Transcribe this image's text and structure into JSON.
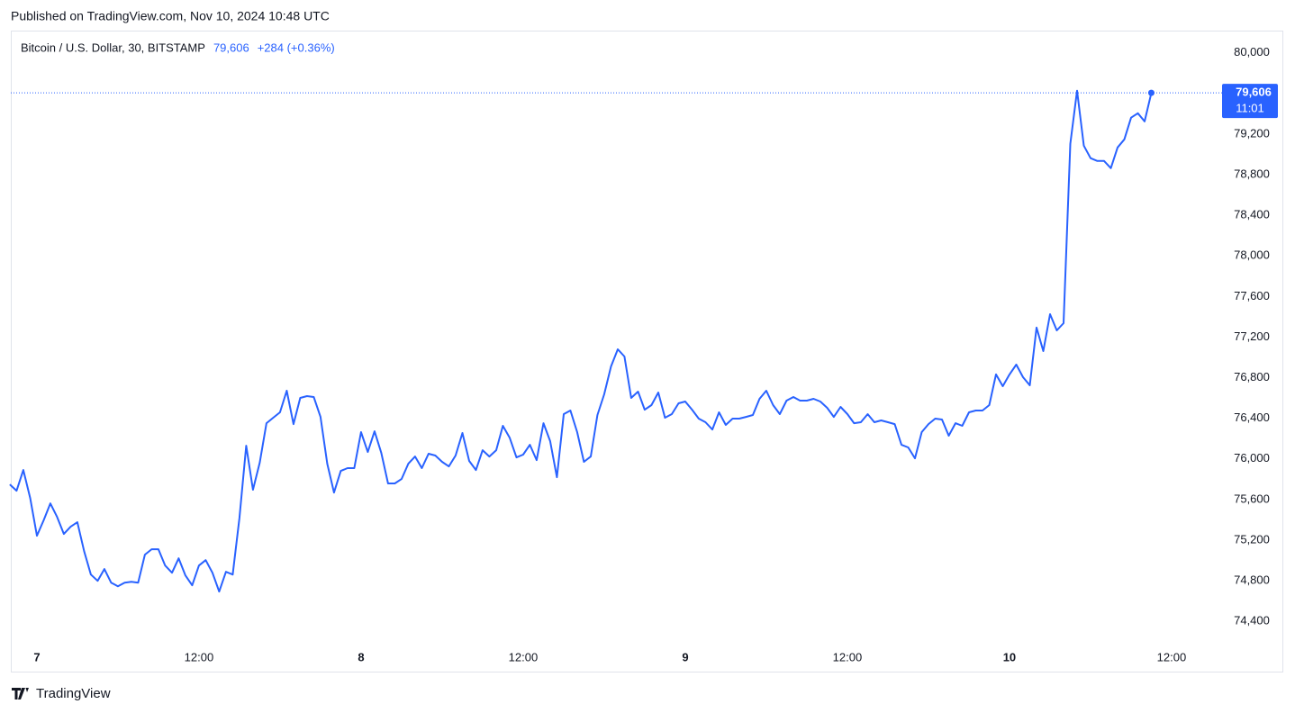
{
  "header": {
    "published": "Published on TradingView.com, Nov 10, 2024 10:48 UTC"
  },
  "footer": {
    "brand": "TradingView"
  },
  "chart_data": {
    "type": "line",
    "title": "Bitcoin / U.S. Dollar, 30, BITSTAMP",
    "legend_price": "79,606",
    "legend_change": "+284 (+0.36%)",
    "color": "#2962ff",
    "last_price": {
      "value": 79606,
      "label": "79,606"
    },
    "countdown": "11:01",
    "xlim": [
      -1.93,
      87.27
    ],
    "xticks": [
      {
        "value": 0,
        "label": "7"
      },
      {
        "value": 12,
        "label": "12:00"
      },
      {
        "value": 24,
        "label": "8"
      },
      {
        "value": 36,
        "label": "12:00"
      },
      {
        "value": 48,
        "label": "9"
      },
      {
        "value": 60,
        "label": "12:00"
      },
      {
        "value": 72,
        "label": "10"
      },
      {
        "value": 84,
        "label": "12:00"
      }
    ],
    "ylim": [
      74180,
      80210
    ],
    "yticks": [
      {
        "value": 74400,
        "label": "74,400"
      },
      {
        "value": 74800,
        "label": "74,800"
      },
      {
        "value": 75200,
        "label": "75,200"
      },
      {
        "value": 75600,
        "label": "75,600"
      },
      {
        "value": 76000,
        "label": "76,000"
      },
      {
        "value": 76400,
        "label": "76,400"
      },
      {
        "value": 76800,
        "label": "76,800"
      },
      {
        "value": 77200,
        "label": "77,200"
      },
      {
        "value": 77600,
        "label": "77,600"
      },
      {
        "value": 78000,
        "label": "78,000"
      },
      {
        "value": 78400,
        "label": "78,400"
      },
      {
        "value": 78800,
        "label": "78,800"
      },
      {
        "value": 79200,
        "label": "79,200"
      },
      {
        "value": 80000,
        "label": "80,000"
      }
    ],
    "x": [
      -2,
      -1.5,
      -1,
      -0.5,
      0,
      0.5,
      1,
      1.5,
      2,
      2.5,
      3,
      3.5,
      4,
      4.5,
      5,
      5.5,
      6,
      6.5,
      7,
      7.5,
      8,
      8.5,
      9,
      9.5,
      10,
      10.5,
      11,
      11.5,
      12,
      12.5,
      13,
      13.5,
      14,
      14.5,
      15,
      15.5,
      16,
      16.5,
      17,
      17.5,
      18,
      18.5,
      19,
      19.5,
      20,
      20.5,
      21,
      21.5,
      22,
      22.5,
      23,
      23.5,
      24,
      24.5,
      25,
      25.5,
      26,
      26.5,
      27,
      27.5,
      28,
      28.5,
      29,
      29.5,
      30,
      30.5,
      31,
      31.5,
      32,
      32.5,
      33,
      33.5,
      34,
      34.5,
      35,
      35.5,
      36,
      36.5,
      37,
      37.5,
      38,
      38.5,
      39,
      39.5,
      40,
      40.5,
      41,
      41.5,
      42,
      42.5,
      43,
      43.5,
      44,
      44.5,
      45,
      45.5,
      46,
      46.5,
      47,
      47.5,
      48,
      48.5,
      49,
      49.5,
      50,
      50.5,
      51,
      51.5,
      52,
      52.5,
      53,
      53.5,
      54,
      54.5,
      55,
      55.5,
      56,
      56.5,
      57,
      57.5,
      58,
      58.5,
      59,
      59.5,
      60,
      60.5,
      61,
      61.5,
      62,
      62.5,
      63,
      63.5,
      64,
      64.5,
      65,
      65.5,
      66,
      66.5,
      67,
      67.5,
      68,
      68.5,
      69,
      69.5,
      70,
      70.5,
      71,
      71.5,
      72,
      72.5,
      73,
      73.5,
      74,
      74.5,
      75,
      75.5,
      76,
      76.5,
      77,
      77.5,
      78,
      78.5,
      79,
      79.5,
      80,
      80.5,
      81,
      81.5,
      82,
      82.5
    ],
    "values": [
      75749,
      75687,
      75891,
      75616,
      75243,
      75394,
      75562,
      75429,
      75261,
      75332,
      75376,
      75092,
      74861,
      74799,
      74915,
      74781,
      74746,
      74781,
      74790,
      74781,
      75057,
      75110,
      75110,
      74950,
      74879,
      75021,
      74852,
      74755,
      74950,
      75003,
      74879,
      74693,
      74888,
      74861,
      75420,
      76130,
      75696,
      75962,
      76352,
      76406,
      76459,
      76672,
      76343,
      76601,
      76619,
      76610,
      76414,
      75953,
      75669,
      75882,
      75909,
      75909,
      76264,
      76068,
      76272,
      76059,
      75758,
      75758,
      75802,
      75953,
      76024,
      75909,
      76051,
      76033,
      75971,
      75926,
      76033,
      76255,
      75980,
      75891,
      76086,
      76024,
      76086,
      76326,
      76210,
      76015,
      76042,
      76139,
      75988,
      76352,
      76175,
      75820,
      76441,
      76477,
      76264,
      75971,
      76024,
      76432,
      76636,
      76911,
      77080,
      77009,
      76601,
      76663,
      76485,
      76530,
      76654,
      76406,
      76441,
      76548,
      76565,
      76485,
      76397,
      76361,
      76290,
      76459,
      76335,
      76397,
      76397,
      76414,
      76432,
      76592,
      76672,
      76530,
      76441,
      76574,
      76610,
      76574,
      76574,
      76592,
      76565,
      76503,
      76414,
      76512,
      76441,
      76352,
      76361,
      76441,
      76361,
      76379,
      76361,
      76343,
      76139,
      76113,
      76006,
      76264,
      76343,
      76397,
      76388,
      76228,
      76352,
      76326,
      76459,
      76477,
      76477,
      76530,
      76832,
      76716,
      76832,
      76929,
      76805,
      76725,
      77293,
      77062,
      77426,
      77266,
      77337,
      79104,
      79627,
      79086,
      78962,
      78935,
      78935,
      78864,
      79068,
      79148,
      79361,
      79405,
      79325,
      79606
    ]
  }
}
